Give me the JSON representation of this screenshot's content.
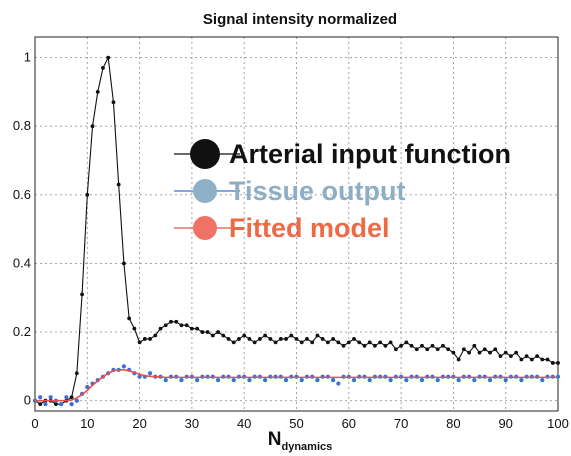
{
  "chart_data": {
    "type": "line",
    "title": "Signal intensity normalized",
    "xlabel_main": "N",
    "xlabel_sub": "dynamics",
    "ylabel": "",
    "xlim": [
      0,
      100
    ],
    "ylim": [
      -0.03,
      1.06
    ],
    "xticks": [
      0,
      10,
      20,
      30,
      40,
      50,
      60,
      70,
      80,
      90,
      100
    ],
    "yticks": [
      0,
      0.2,
      0.4,
      0.6,
      0.8,
      1
    ],
    "grid": true,
    "legend_position": "upper-right",
    "series": [
      {
        "name": "Arterial input function",
        "color": "#111111",
        "marker_color": "#111111",
        "text_color": "#111111",
        "style": "line-markers",
        "values": [
          0,
          -0.01,
          0,
          0,
          -0.01,
          -0.01,
          0,
          0.01,
          0.08,
          0.31,
          0.6,
          0.8,
          0.9,
          0.97,
          1,
          0.87,
          0.63,
          0.4,
          0.24,
          0.21,
          0.17,
          0.18,
          0.18,
          0.19,
          0.21,
          0.22,
          0.23,
          0.23,
          0.22,
          0.22,
          0.21,
          0.21,
          0.2,
          0.2,
          0.19,
          0.2,
          0.19,
          0.18,
          0.17,
          0.18,
          0.19,
          0.18,
          0.17,
          0.18,
          0.19,
          0.18,
          0.17,
          0.18,
          0.18,
          0.19,
          0.18,
          0.17,
          0.18,
          0.17,
          0.19,
          0.18,
          0.17,
          0.18,
          0.17,
          0.16,
          0.17,
          0.18,
          0.17,
          0.16,
          0.17,
          0.16,
          0.17,
          0.16,
          0.17,
          0.15,
          0.16,
          0.17,
          0.16,
          0.15,
          0.16,
          0.15,
          0.16,
          0.15,
          0.16,
          0.15,
          0.14,
          0.12,
          0.15,
          0.14,
          0.16,
          0.14,
          0.15,
          0.14,
          0.15,
          0.13,
          0.14,
          0.13,
          0.14,
          0.12,
          0.13,
          0.12,
          0.13,
          0.12,
          0.12,
          0.11,
          0.11
        ]
      },
      {
        "name": "Tissue output",
        "color": "#3a6fd8",
        "legend_color": "#8eb0c8",
        "text_color": "#8eaec6",
        "style": "markers",
        "values": [
          0,
          0.01,
          -0.01,
          0.01,
          0,
          -0.01,
          0.01,
          -0.01,
          0,
          0.02,
          0.04,
          0.05,
          0.06,
          0.07,
          0.08,
          0.09,
          0.09,
          0.1,
          0.09,
          0.08,
          0.07,
          0.07,
          0.08,
          0.07,
          0.07,
          0.06,
          0.07,
          0.07,
          0.06,
          0.07,
          0.07,
          0.06,
          0.07,
          0.07,
          0.07,
          0.06,
          0.07,
          0.07,
          0.06,
          0.07,
          0.07,
          0.06,
          0.07,
          0.07,
          0.06,
          0.07,
          0.07,
          0.07,
          0.06,
          0.07,
          0.07,
          0.06,
          0.07,
          0.07,
          0.06,
          0.07,
          0.07,
          0.06,
          0.05,
          0.07,
          0.07,
          0.06,
          0.07,
          0.07,
          0.06,
          0.07,
          0.07,
          0.07,
          0.06,
          0.07,
          0.07,
          0.06,
          0.07,
          0.07,
          0.06,
          0.07,
          0.07,
          0.06,
          0.07,
          0.07,
          0.07,
          0.06,
          0.07,
          0.07,
          0.06,
          0.07,
          0.07,
          0.06,
          0.07,
          0.07,
          0.06,
          0.07,
          0.07,
          0.06,
          0.07,
          0.07,
          0.07,
          0.06,
          0.07,
          0.07,
          0.07
        ]
      },
      {
        "name": "Fitted model",
        "color": "#e8504a",
        "legend_color": "#f07266",
        "text_color": "#ef6a44",
        "style": "line",
        "values": [
          0,
          0,
          0,
          0,
          0,
          0,
          0,
          0.002,
          0.008,
          0.018,
          0.03,
          0.045,
          0.058,
          0.07,
          0.08,
          0.087,
          0.09,
          0.09,
          0.087,
          0.082,
          0.077,
          0.073,
          0.071,
          0.07,
          0.069,
          0.068,
          0.068,
          0.068,
          0.068,
          0.068,
          0.068,
          0.068,
          0.068,
          0.068,
          0.068,
          0.068,
          0.068,
          0.068,
          0.068,
          0.068,
          0.068,
          0.068,
          0.068,
          0.068,
          0.068,
          0.068,
          0.068,
          0.068,
          0.068,
          0.068,
          0.068,
          0.068,
          0.068,
          0.068,
          0.068,
          0.068,
          0.068,
          0.068,
          0.068,
          0.068,
          0.068,
          0.068,
          0.068,
          0.068,
          0.068,
          0.068,
          0.068,
          0.068,
          0.068,
          0.068,
          0.068,
          0.068,
          0.068,
          0.068,
          0.068,
          0.068,
          0.068,
          0.068,
          0.068,
          0.068,
          0.068,
          0.068,
          0.068,
          0.068,
          0.068,
          0.068,
          0.068,
          0.068,
          0.068,
          0.068,
          0.068,
          0.068,
          0.068,
          0.068,
          0.068,
          0.068,
          0.068,
          0.068,
          0.068,
          0.068,
          0.068
        ]
      }
    ]
  }
}
